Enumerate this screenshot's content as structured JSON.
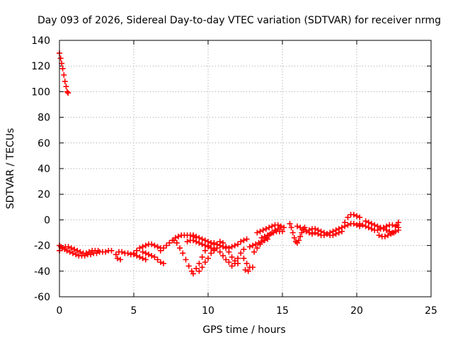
{
  "chart_data": {
    "type": "scatter",
    "title": "Day 093 of 2026, Sidereal Day-to-day VTEC variation (SDTVAR) for receiver nrmg",
    "xlabel": "GPS time / hours",
    "ylabel": "SDTVAR / TECUs",
    "xlim": [
      0,
      25
    ],
    "ylim": [
      -60,
      140
    ],
    "xticks": [
      0,
      5,
      10,
      15,
      20,
      25
    ],
    "yticks": [
      -60,
      -40,
      -20,
      0,
      20,
      40,
      60,
      80,
      100,
      120,
      140
    ],
    "grid": true,
    "marker": "+",
    "series_color": "#ff0000",
    "series": [
      {
        "name": "SDTVAR",
        "points": [
          [
            0.0,
            130
          ],
          [
            0.08,
            126
          ],
          [
            0.15,
            122
          ],
          [
            0.22,
            118
          ],
          [
            0.3,
            113
          ],
          [
            0.37,
            108
          ],
          [
            0.45,
            104
          ],
          [
            0.52,
            100
          ],
          [
            0.58,
            99
          ],
          [
            0.0,
            -20
          ],
          [
            0.1,
            -21
          ],
          [
            0.2,
            -22
          ],
          [
            0.35,
            -23
          ],
          [
            0.5,
            -24
          ],
          [
            0.7,
            -25
          ],
          [
            0.9,
            -26
          ],
          [
            1.1,
            -27
          ],
          [
            1.3,
            -28
          ],
          [
            1.5,
            -28
          ],
          [
            1.7,
            -28
          ],
          [
            1.9,
            -27
          ],
          [
            2.1,
            -27
          ],
          [
            2.3,
            -26
          ],
          [
            2.5,
            -26
          ],
          [
            2.7,
            -25
          ],
          [
            2.9,
            -25
          ],
          [
            3.1,
            -25
          ],
          [
            3.3,
            -24
          ],
          [
            3.5,
            -24
          ],
          [
            0.0,
            -24
          ],
          [
            0.2,
            -22
          ],
          [
            0.4,
            -21
          ],
          [
            0.6,
            -21
          ],
          [
            0.8,
            -22
          ],
          [
            1.0,
            -23
          ],
          [
            1.2,
            -24
          ],
          [
            1.4,
            -25
          ],
          [
            1.6,
            -26
          ],
          [
            1.8,
            -26
          ],
          [
            2.0,
            -25
          ],
          [
            2.2,
            -24
          ],
          [
            2.4,
            -24
          ],
          [
            2.6,
            -24
          ],
          [
            3.8,
            -27
          ],
          [
            4.0,
            -25
          ],
          [
            4.2,
            -25
          ],
          [
            4.4,
            -26
          ],
          [
            4.6,
            -26
          ],
          [
            4.8,
            -27
          ],
          [
            5.0,
            -27
          ],
          [
            5.2,
            -28
          ],
          [
            5.4,
            -29
          ],
          [
            5.6,
            -30
          ],
          [
            5.8,
            -31
          ],
          [
            3.9,
            -30
          ],
          [
            4.1,
            -31
          ],
          [
            5.0,
            -26
          ],
          [
            5.2,
            -24
          ],
          [
            5.4,
            -22
          ],
          [
            5.6,
            -21
          ],
          [
            5.8,
            -20
          ],
          [
            6.0,
            -19
          ],
          [
            6.2,
            -19
          ],
          [
            6.4,
            -20
          ],
          [
            6.6,
            -21
          ],
          [
            6.8,
            -22
          ],
          [
            5.6,
            -25
          ],
          [
            5.8,
            -26
          ],
          [
            6.0,
            -27
          ],
          [
            6.2,
            -28
          ],
          [
            6.4,
            -29
          ],
          [
            6.6,
            -31
          ],
          [
            6.8,
            -33
          ],
          [
            7.0,
            -34
          ],
          [
            6.8,
            -24
          ],
          [
            7.0,
            -22
          ],
          [
            7.2,
            -20
          ],
          [
            7.4,
            -18
          ],
          [
            7.6,
            -16
          ],
          [
            7.8,
            -14
          ],
          [
            8.0,
            -13
          ],
          [
            8.2,
            -12
          ],
          [
            8.4,
            -12
          ],
          [
            8.6,
            -12
          ],
          [
            8.8,
            -12
          ],
          [
            9.0,
            -13
          ],
          [
            9.2,
            -14
          ],
          [
            7.7,
            -16
          ],
          [
            7.9,
            -18
          ],
          [
            8.1,
            -22
          ],
          [
            8.3,
            -26
          ],
          [
            8.5,
            -31
          ],
          [
            8.7,
            -36
          ],
          [
            8.9,
            -40
          ],
          [
            9.0,
            -42
          ],
          [
            9.2,
            -38
          ],
          [
            9.4,
            -34
          ],
          [
            9.6,
            -29
          ],
          [
            9.8,
            -24
          ],
          [
            10.0,
            -20
          ],
          [
            10.2,
            -18
          ],
          [
            9.4,
            -40
          ],
          [
            9.6,
            -37
          ],
          [
            9.8,
            -33
          ],
          [
            10.0,
            -30
          ],
          [
            10.2,
            -26
          ],
          [
            10.4,
            -23
          ],
          [
            10.6,
            -19
          ],
          [
            10.8,
            -17
          ],
          [
            11.0,
            -18
          ],
          [
            11.2,
            -21
          ],
          [
            11.4,
            -25
          ],
          [
            11.6,
            -29
          ],
          [
            11.8,
            -32
          ],
          [
            12.0,
            -34
          ],
          [
            9.0,
            -12
          ],
          [
            9.2,
            -13
          ],
          [
            9.4,
            -14
          ],
          [
            9.6,
            -15
          ],
          [
            9.8,
            -16
          ],
          [
            10.0,
            -17
          ],
          [
            10.2,
            -18
          ],
          [
            10.4,
            -18
          ],
          [
            10.6,
            -19
          ],
          [
            10.8,
            -20
          ],
          [
            11.0,
            -21
          ],
          [
            11.2,
            -22
          ],
          [
            11.4,
            -22
          ],
          [
            11.6,
            -21
          ],
          [
            11.8,
            -20
          ],
          [
            12.0,
            -19
          ],
          [
            12.2,
            -17
          ],
          [
            12.4,
            -16
          ],
          [
            12.6,
            -15
          ],
          [
            8.6,
            -17
          ],
          [
            8.8,
            -16
          ],
          [
            9.0,
            -16
          ],
          [
            9.2,
            -17
          ],
          [
            9.4,
            -18
          ],
          [
            9.6,
            -19
          ],
          [
            9.8,
            -20
          ],
          [
            10.0,
            -21
          ],
          [
            10.2,
            -22
          ],
          [
            10.4,
            -24
          ],
          [
            10.4,
            -19
          ],
          [
            10.6,
            -22
          ],
          [
            10.8,
            -25
          ],
          [
            11.0,
            -28
          ],
          [
            11.2,
            -31
          ],
          [
            11.4,
            -33
          ],
          [
            11.6,
            -36
          ],
          [
            11.8,
            -34
          ],
          [
            12.0,
            -30
          ],
          [
            12.2,
            -26
          ],
          [
            12.4,
            -23
          ],
          [
            12.4,
            -30
          ],
          [
            12.6,
            -34
          ],
          [
            12.8,
            -37
          ],
          [
            13.0,
            -37
          ],
          [
            12.5,
            -39
          ],
          [
            12.7,
            -40
          ],
          [
            12.8,
            -21
          ],
          [
            13.0,
            -20
          ],
          [
            13.2,
            -19
          ],
          [
            13.4,
            -18
          ],
          [
            13.6,
            -17
          ],
          [
            13.8,
            -16
          ],
          [
            14.0,
            -15
          ],
          [
            13.1,
            -25
          ],
          [
            13.3,
            -22
          ],
          [
            13.5,
            -19
          ],
          [
            13.7,
            -16
          ],
          [
            13.9,
            -14
          ],
          [
            14.1,
            -12
          ],
          [
            14.3,
            -10
          ],
          [
            14.5,
            -8
          ],
          [
            14.7,
            -7
          ],
          [
            14.9,
            -6
          ],
          [
            13.3,
            -10
          ],
          [
            13.5,
            -9
          ],
          [
            13.7,
            -8
          ],
          [
            13.9,
            -7
          ],
          [
            14.1,
            -6
          ],
          [
            14.3,
            -5
          ],
          [
            14.5,
            -4
          ],
          [
            14.7,
            -4
          ],
          [
            14.9,
            -5
          ],
          [
            15.1,
            -6
          ],
          [
            13.6,
            -14
          ],
          [
            13.8,
            -13
          ],
          [
            14.0,
            -12
          ],
          [
            14.2,
            -11
          ],
          [
            14.4,
            -10
          ],
          [
            14.6,
            -9
          ],
          [
            14.8,
            -9
          ],
          [
            15.0,
            -9
          ],
          [
            15.5,
            -3
          ],
          [
            15.6,
            -6
          ],
          [
            15.7,
            -10
          ],
          [
            15.8,
            -14
          ],
          [
            15.9,
            -17
          ],
          [
            16.0,
            -18
          ],
          [
            16.1,
            -16
          ],
          [
            16.2,
            -13
          ],
          [
            16.3,
            -10
          ],
          [
            16.4,
            -8
          ],
          [
            16.5,
            -6
          ],
          [
            16.0,
            -5
          ],
          [
            16.2,
            -6
          ],
          [
            16.4,
            -7
          ],
          [
            16.6,
            -9
          ],
          [
            16.8,
            -10
          ],
          [
            17.0,
            -11
          ],
          [
            16.8,
            -8
          ],
          [
            17.0,
            -7
          ],
          [
            17.2,
            -7
          ],
          [
            17.4,
            -8
          ],
          [
            17.6,
            -9
          ],
          [
            17.8,
            -10
          ],
          [
            18.0,
            -11
          ],
          [
            18.2,
            -12
          ],
          [
            18.4,
            -12
          ],
          [
            18.6,
            -11
          ],
          [
            18.8,
            -10
          ],
          [
            19.0,
            -9
          ],
          [
            17.2,
            -10
          ],
          [
            17.4,
            -11
          ],
          [
            17.6,
            -12
          ],
          [
            17.8,
            -12
          ],
          [
            18.0,
            -11
          ],
          [
            18.2,
            -10
          ],
          [
            18.4,
            -9
          ],
          [
            18.6,
            -8
          ],
          [
            18.8,
            -7
          ],
          [
            19.0,
            -6
          ],
          [
            19.2,
            -5
          ],
          [
            19.4,
            -4
          ],
          [
            19.6,
            -3
          ],
          [
            19.8,
            -3
          ],
          [
            20.0,
            -4
          ],
          [
            20.2,
            -5
          ],
          [
            19.2,
            -2
          ],
          [
            19.4,
            2
          ],
          [
            19.6,
            4
          ],
          [
            19.8,
            4
          ],
          [
            20.0,
            3
          ],
          [
            20.2,
            2
          ],
          [
            20.2,
            -3
          ],
          [
            20.4,
            -4
          ],
          [
            20.6,
            -5
          ],
          [
            20.8,
            -6
          ],
          [
            21.0,
            -7
          ],
          [
            21.2,
            -8
          ],
          [
            21.4,
            -8
          ],
          [
            21.6,
            -7
          ],
          [
            21.8,
            -6
          ],
          [
            22.0,
            -5
          ],
          [
            22.2,
            -4
          ],
          [
            22.4,
            -4
          ],
          [
            22.6,
            -5
          ],
          [
            22.8,
            -6
          ],
          [
            20.6,
            -1
          ],
          [
            20.8,
            -2
          ],
          [
            21.0,
            -3
          ],
          [
            21.2,
            -4
          ],
          [
            21.4,
            -5
          ],
          [
            21.6,
            -6
          ],
          [
            21.8,
            -7
          ],
          [
            22.0,
            -8
          ],
          [
            22.2,
            -9
          ],
          [
            22.4,
            -10
          ],
          [
            22.6,
            -9
          ],
          [
            22.8,
            -8
          ],
          [
            21.5,
            -12
          ],
          [
            21.7,
            -13
          ],
          [
            21.9,
            -13
          ],
          [
            22.1,
            -12
          ],
          [
            22.3,
            -11
          ],
          [
            22.5,
            -10
          ],
          [
            22.7,
            -4
          ],
          [
            22.8,
            -2
          ]
        ]
      }
    ]
  }
}
